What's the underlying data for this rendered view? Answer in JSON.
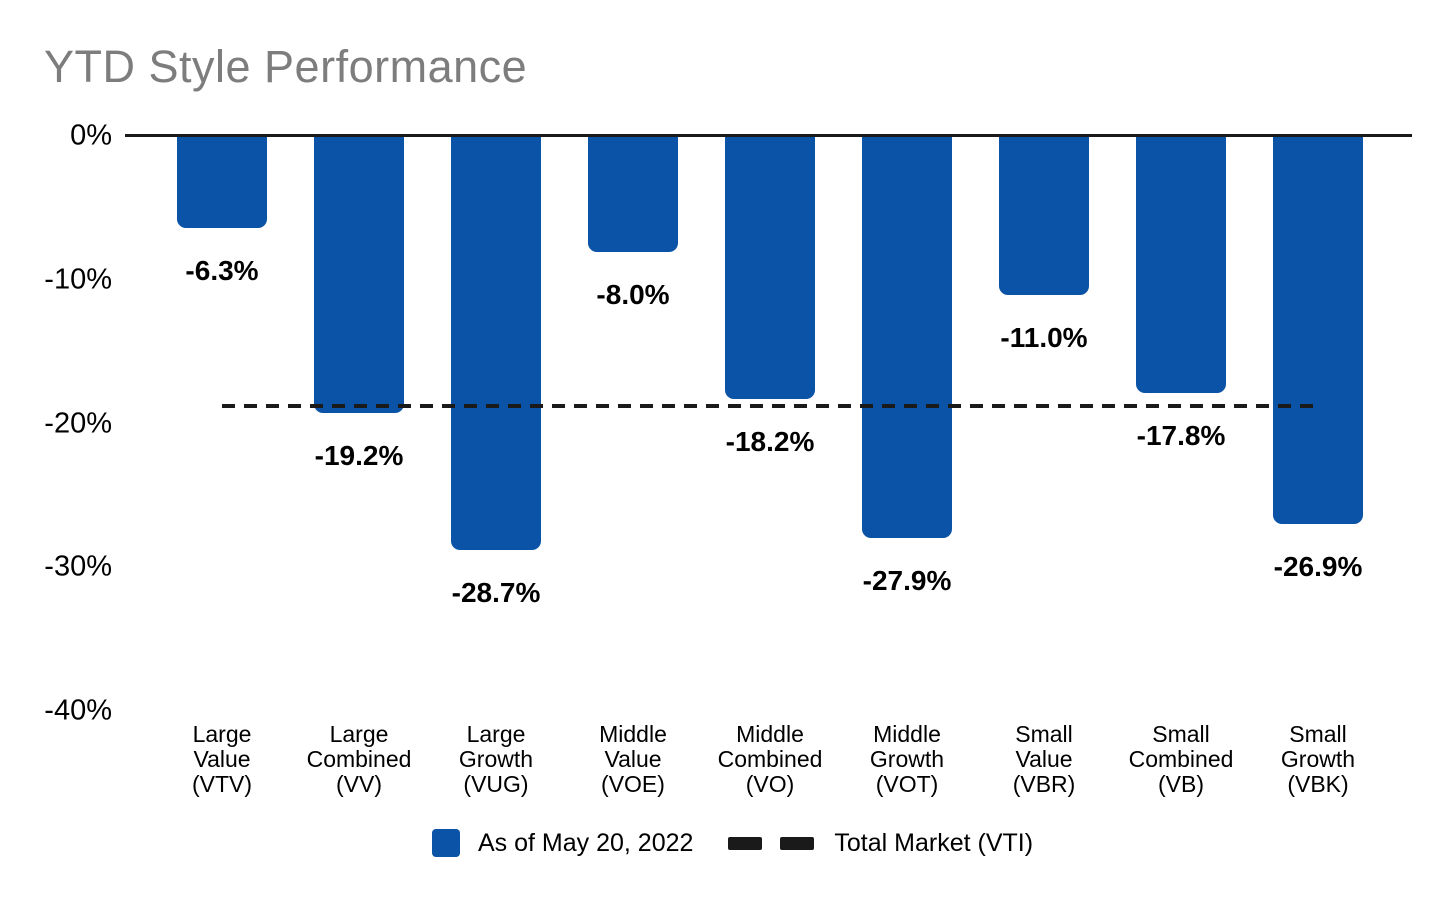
{
  "header": {
    "title": "YTD Style Performance"
  },
  "chart_data": {
    "type": "bar",
    "title": "YTD Style Performance",
    "categories": [
      "Large Value (VTV)",
      "Large Combined (VV)",
      "Large Growth (VUG)",
      "Middle Value (VOE)",
      "Middle Combined (VO)",
      "Middle Growth (VOT)",
      "Small Value (VBR)",
      "Small Combined (VB)",
      "Small Growth (VBK)"
    ],
    "category_lines": [
      [
        "Large",
        "Value",
        "(VTV)"
      ],
      [
        "Large",
        "Combined",
        "(VV)"
      ],
      [
        "Large",
        "Growth",
        "(VUG)"
      ],
      [
        "Middle",
        "Value",
        "(VOE)"
      ],
      [
        "Middle",
        "Combined",
        "(VO)"
      ],
      [
        "Middle",
        "Growth",
        "(VOT)"
      ],
      [
        "Small",
        "Value",
        "(VBR)"
      ],
      [
        "Small",
        "Combined",
        "(VB)"
      ],
      [
        "Small",
        "Growth",
        "(VBK)"
      ]
    ],
    "series": [
      {
        "name": "As of May 20, 2022",
        "values": [
          -6.3,
          -19.2,
          -28.7,
          -8.0,
          -18.2,
          -27.9,
          -11.0,
          -17.8,
          -26.9
        ]
      }
    ],
    "bar_labels": [
      "-6.3%",
      "-19.2%",
      "-28.7%",
      "-8.0%",
      "-18.2%",
      "-27.9%",
      "-11.0%",
      "-17.8%",
      "-26.9%"
    ],
    "xlabel": "",
    "ylabel": "",
    "ylim": [
      -40,
      0
    ],
    "grid": false,
    "y_ticks": {
      "labels": [
        "0%",
        "-10%",
        "-20%",
        "-30%",
        "-40%"
      ],
      "values": [
        0,
        -10,
        -20,
        -30,
        -40
      ]
    },
    "reference_line": {
      "name": "Total Market (VTI)",
      "value": -18.8,
      "style": "dashed"
    },
    "legend": {
      "position": "bottom",
      "items": [
        {
          "swatch": "square",
          "label": "As of May 20, 2022"
        },
        {
          "swatch": "dashes",
          "label": "Total Market (VTI)"
        }
      ]
    },
    "colors": {
      "bar": "#0A53A6",
      "title": "#7D7D7D",
      "axis_line": "#1A1A1A",
      "text": "#000000"
    }
  }
}
